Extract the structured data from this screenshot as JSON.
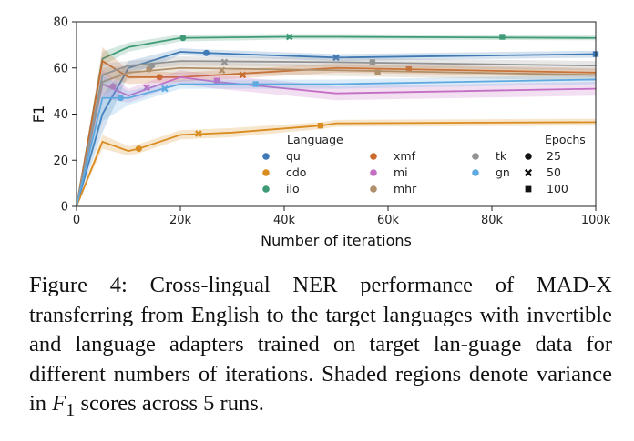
{
  "chart_data": {
    "type": "line",
    "xlabel": "Number of iterations",
    "ylabel": "F1",
    "xlim": [
      0,
      100000
    ],
    "ylim": [
      0,
      80
    ],
    "xticks": [
      0,
      20000,
      40000,
      60000,
      80000,
      100000
    ],
    "xtick_labels": [
      "0",
      "20k",
      "40k",
      "60k",
      "80k",
      "100k"
    ],
    "yticks": [
      0,
      20,
      40,
      60,
      80
    ],
    "ytick_labels": [
      "0",
      "20",
      "40",
      "60",
      "80"
    ],
    "grid": false,
    "shaded_variance": true,
    "legend_title": "Language",
    "epochs_title": "Epochs",
    "epochs": [
      {
        "label": "25",
        "marker": "circle"
      },
      {
        "label": "50",
        "marker": "x"
      },
      {
        "label": "100",
        "marker": "square"
      }
    ],
    "series": [
      {
        "name": "qu",
        "color": "#3f7ab5",
        "x": [
          0,
          5000,
          10000,
          20000,
          25000,
          50000,
          100000
        ],
        "y": [
          0,
          40,
          60,
          67,
          66.5,
          64.5,
          66
        ],
        "spread": [
          0,
          8,
          3,
          1.5,
          1.5,
          1.5,
          1.5
        ],
        "markers": [
          {
            "x": 25000,
            "y": 66.5,
            "m": "circle"
          },
          {
            "x": 50000,
            "y": 64.5,
            "m": "x"
          },
          {
            "x": 100000,
            "y": 66,
            "m": "square"
          }
        ]
      },
      {
        "name": "cdo",
        "color": "#d98c1f",
        "x": [
          0,
          5000,
          10000,
          12000,
          20000,
          30000,
          47000,
          50000,
          100000
        ],
        "y": [
          0,
          28,
          24,
          25,
          31,
          32,
          35,
          36,
          36.5
        ],
        "spread": [
          0,
          3,
          2,
          2,
          2,
          2,
          1.5,
          1.5,
          1.5
        ],
        "markers": [
          {
            "x": 12000,
            "y": 25,
            "m": "circle"
          },
          {
            "x": 23500,
            "y": 31.5,
            "m": "x"
          },
          {
            "x": 47000,
            "y": 35,
            "m": "square"
          }
        ]
      },
      {
        "name": "ilo",
        "color": "#3f9a76",
        "x": [
          0,
          5000,
          10000,
          20000,
          40000,
          50000,
          100000
        ],
        "y": [
          0,
          64,
          69,
          73,
          73.5,
          73.5,
          73
        ],
        "spread": [
          0,
          3,
          2,
          1.5,
          1.2,
          1.2,
          1
        ],
        "markers": [
          {
            "x": 20500,
            "y": 73,
            "m": "circle"
          },
          {
            "x": 41000,
            "y": 73.5,
            "m": "x"
          },
          {
            "x": 82000,
            "y": 73.5,
            "m": "square"
          }
        ]
      },
      {
        "name": "xmf",
        "color": "#cc6a2b",
        "x": [
          0,
          5000,
          10000,
          20000,
          50000,
          100000
        ],
        "y": [
          0,
          63,
          56,
          56,
          60,
          58
        ],
        "spread": [
          0,
          6,
          3,
          2,
          2,
          2
        ],
        "markers": [
          {
            "x": 16000,
            "y": 56,
            "m": "circle"
          },
          {
            "x": 32000,
            "y": 57,
            "m": "x"
          },
          {
            "x": 64000,
            "y": 59.5,
            "m": "square"
          }
        ]
      },
      {
        "name": "mi",
        "color": "#c46fc4",
        "x": [
          0,
          5000,
          10000,
          20000,
          27000,
          50000,
          100000
        ],
        "y": [
          0,
          53,
          48,
          56,
          54,
          49,
          51
        ],
        "spread": [
          0,
          6,
          3,
          3,
          3,
          3,
          3
        ],
        "markers": [
          {
            "x": 7000,
            "y": 52,
            "m": "circle"
          },
          {
            "x": 13500,
            "y": 51.5,
            "m": "x"
          },
          {
            "x": 27000,
            "y": 54.5,
            "m": "square"
          }
        ]
      },
      {
        "name": "mhr",
        "color": "#b0906a",
        "x": [
          0,
          5000,
          10000,
          20000,
          50000,
          100000
        ],
        "y": [
          0,
          54,
          58,
          60,
          59,
          57
        ],
        "spread": [
          0,
          6,
          3,
          2.5,
          2.5,
          2.5
        ],
        "markers": [
          {
            "x": 14000,
            "y": 59.5,
            "m": "circle"
          },
          {
            "x": 28000,
            "y": 59,
            "m": "x"
          },
          {
            "x": 58000,
            "y": 58,
            "m": "square"
          }
        ]
      },
      {
        "name": "tk",
        "color": "#939393",
        "x": [
          0,
          5000,
          10000,
          20000,
          50000,
          100000
        ],
        "y": [
          0,
          57,
          61,
          63,
          62.5,
          61
        ],
        "spread": [
          0,
          5,
          2,
          2,
          2,
          2
        ],
        "markers": [
          {
            "x": 14500,
            "y": 61,
            "m": "circle"
          },
          {
            "x": 28500,
            "y": 62.5,
            "m": "x"
          },
          {
            "x": 57000,
            "y": 62.5,
            "m": "square"
          }
        ]
      },
      {
        "name": "gn",
        "color": "#5ea9e0",
        "x": [
          0,
          5000,
          10000,
          20000,
          35000,
          50000,
          100000
        ],
        "y": [
          0,
          47,
          47,
          53,
          53,
          53,
          55
        ],
        "spread": [
          0,
          10,
          3,
          2,
          2,
          2,
          2
        ],
        "markers": [
          {
            "x": 8500,
            "y": 47,
            "m": "circle"
          },
          {
            "x": 17000,
            "y": 51,
            "m": "x"
          },
          {
            "x": 34500,
            "y": 53,
            "m": "square"
          }
        ]
      }
    ]
  },
  "caption": "Figure 4: Cross-lingual NER performance of MAD-X transferring from English to the target languages with invertible and language adapters trained on target language data for different numbers of iterations. Shaded regions denote variance in F1 scores across 5 runs.",
  "caption_parts": {
    "before": "Figure 4: Cross-lingual NER performance of MAD-X transferring from English to the target languages with invertible and language adapters trained on target lan-guage data for different numbers of iterations. Shaded regions denote variance in ",
    "var": "F",
    "sub": "1",
    "after": " scores across 5 runs."
  }
}
